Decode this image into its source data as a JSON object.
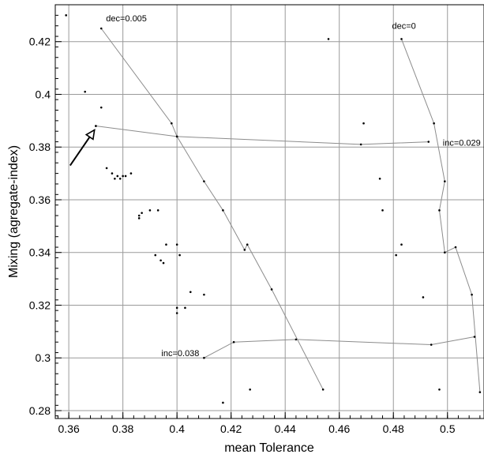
{
  "chart_data": {
    "type": "scatter",
    "xlabel": "mean Tolerance",
    "ylabel": "Mixing (agregate-index)",
    "xlim": [
      0.355,
      0.5135
    ],
    "ylim": [
      0.277,
      0.434
    ],
    "xticks": [
      "0.36",
      "0.38",
      "0.4",
      "0.42",
      "0.44",
      "0.46",
      "0.48",
      "0.5"
    ],
    "yticks": [
      "0.28",
      "0.3",
      "0.32",
      "0.34",
      "0.36",
      "0.38",
      "0.4",
      "0.42"
    ],
    "grid": true,
    "points": [
      [
        0.359,
        0.43
      ],
      [
        0.366,
        0.401
      ],
      [
        0.372,
        0.395
      ],
      [
        0.37,
        0.388
      ],
      [
        0.374,
        0.372
      ],
      [
        0.376,
        0.37
      ],
      [
        0.377,
        0.368
      ],
      [
        0.378,
        0.369
      ],
      [
        0.379,
        0.368
      ],
      [
        0.38,
        0.369
      ],
      [
        0.381,
        0.369
      ],
      [
        0.383,
        0.37
      ],
      [
        0.386,
        0.354
      ],
      [
        0.386,
        0.353
      ],
      [
        0.387,
        0.355
      ],
      [
        0.39,
        0.356
      ],
      [
        0.393,
        0.356
      ],
      [
        0.392,
        0.339
      ],
      [
        0.394,
        0.337
      ],
      [
        0.395,
        0.336
      ],
      [
        0.396,
        0.343
      ],
      [
        0.4,
        0.343
      ],
      [
        0.401,
        0.339
      ],
      [
        0.4,
        0.319
      ],
      [
        0.4,
        0.317
      ],
      [
        0.403,
        0.319
      ],
      [
        0.405,
        0.325
      ],
      [
        0.41,
        0.324
      ],
      [
        0.417,
        0.283
      ],
      [
        0.427,
        0.288
      ],
      [
        0.456,
        0.421
      ],
      [
        0.469,
        0.389
      ],
      [
        0.475,
        0.368
      ],
      [
        0.476,
        0.356
      ],
      [
        0.481,
        0.339
      ],
      [
        0.483,
        0.343
      ],
      [
        0.491,
        0.323
      ],
      [
        0.497,
        0.288
      ]
    ],
    "curves": [
      {
        "label": "dec=0.005",
        "points": [
          [
            0.372,
            0.425
          ],
          [
            0.398,
            0.389
          ],
          [
            0.4,
            0.384
          ],
          [
            0.41,
            0.367
          ],
          [
            0.417,
            0.356
          ],
          [
            0.425,
            0.341
          ],
          [
            0.426,
            0.343
          ],
          [
            0.435,
            0.326
          ],
          [
            0.454,
            0.288
          ]
        ]
      },
      {
        "label": "dec=0",
        "points": [
          [
            0.483,
            0.421
          ],
          [
            0.495,
            0.389
          ],
          [
            0.499,
            0.367
          ],
          [
            0.497,
            0.356
          ],
          [
            0.499,
            0.34
          ],
          [
            0.503,
            0.342
          ],
          [
            0.509,
            0.324
          ],
          [
            0.512,
            0.287
          ]
        ]
      },
      {
        "label": "inc=0.029",
        "points": [
          [
            0.37,
            0.388
          ],
          [
            0.4,
            0.384
          ],
          [
            0.468,
            0.381
          ],
          [
            0.493,
            0.382
          ]
        ]
      },
      {
        "label": "inc=0.038",
        "points": [
          [
            0.41,
            0.3
          ],
          [
            0.421,
            0.306
          ],
          [
            0.444,
            0.307
          ],
          [
            0.494,
            0.305
          ],
          [
            0.51,
            0.308
          ]
        ]
      }
    ],
    "arrow": {
      "from": [
        0.3605,
        0.373
      ],
      "to": [
        0.3695,
        0.3865
      ]
    }
  }
}
